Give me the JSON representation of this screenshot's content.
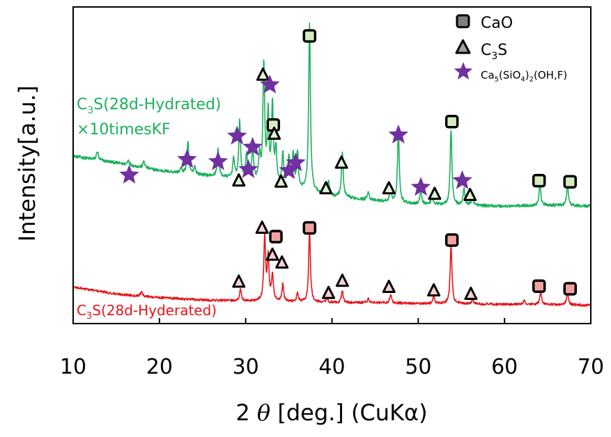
{
  "chart_data": {
    "type": "line",
    "xlabel": "2 θ [deg.] (CuKα)",
    "xlabel_parts": {
      "prefix": "2 ",
      "theta": "θ",
      "suffix": " [deg.] (CuKα)"
    },
    "ylabel": "Intensity[a.u.]",
    "xlim": [
      10,
      70
    ],
    "xticks": [
      10,
      20,
      30,
      40,
      50,
      60,
      70
    ],
    "grid": false,
    "legend_position": "top-right",
    "colors": {
      "hydrated_kf": "#19b15a",
      "hydrated": "#e8141a",
      "star": "#7030a0",
      "cao_green_fill": "#d6ecc0",
      "cao_red_fill": "#f2a0a0",
      "c3s_green_fill": "#dff2d0",
      "c3s_red_fill": "#f8d0d0"
    },
    "legend": [
      {
        "marker": "square",
        "name": "CaO"
      },
      {
        "marker": "triangle",
        "name": "C3S",
        "parts": [
          "C",
          "3",
          "S"
        ]
      },
      {
        "marker": "star",
        "name": "Ca5(SiO4)2(OH,F)",
        "parts": [
          "Ca",
          "5",
          "(SiO",
          "4",
          ")",
          "2",
          "(OH,F)"
        ]
      }
    ],
    "series": [
      {
        "name": "C3S(28d-Hydrated) ×10timesKF",
        "label_line1_parts": [
          "C",
          "3",
          "S(28d-Hydrated)"
        ],
        "label_line2": "×10timesKF",
        "baseline": [
          [
            10,
            0.46
          ],
          [
            15,
            0.4
          ],
          [
            20,
            0.33
          ],
          [
            25,
            0.29
          ],
          [
            30,
            0.25
          ],
          [
            35,
            0.18
          ],
          [
            40,
            0.1
          ],
          [
            45,
            0.06
          ],
          [
            50,
            0.03
          ],
          [
            55,
            0.02
          ],
          [
            60,
            0.01
          ],
          [
            65,
            0.02
          ],
          [
            70,
            0.01
          ]
        ],
        "peaks": [
          [
            12.8,
            0.08
          ],
          [
            16.4,
            0.05
          ],
          [
            18.2,
            0.06
          ],
          [
            22.5,
            0.04
          ],
          [
            23.3,
            0.28
          ],
          [
            24.1,
            0.07
          ],
          [
            26.8,
            0.25
          ],
          [
            28.6,
            0.18
          ],
          [
            29.3,
            0.52
          ],
          [
            30.1,
            0.22
          ],
          [
            30.8,
            0.28
          ],
          [
            31.6,
            0.22
          ],
          [
            32.1,
            1.06
          ],
          [
            32.6,
            0.6
          ],
          [
            33.1,
            0.7
          ],
          [
            33.5,
            0.3
          ],
          [
            34.3,
            0.28
          ],
          [
            35.0,
            0.26
          ],
          [
            35.5,
            0.3
          ],
          [
            36.0,
            0.32
          ],
          [
            37.4,
            1.5
          ],
          [
            39.2,
            0.1
          ],
          [
            39.6,
            0.12
          ],
          [
            41.2,
            0.4
          ],
          [
            44.2,
            0.08
          ],
          [
            46.8,
            0.12
          ],
          [
            47.7,
            0.64
          ],
          [
            50.3,
            0.12
          ],
          [
            51.6,
            0.08
          ],
          [
            53.8,
            0.68
          ],
          [
            55.3,
            0.15
          ],
          [
            56.3,
            0.08
          ],
          [
            64.1,
            0.19
          ],
          [
            67.3,
            0.19
          ]
        ]
      },
      {
        "name": "C3S(28d-Hyderated)",
        "label_parts": [
          "C",
          "3",
          "S(28d-Hyderated)"
        ],
        "baseline": [
          [
            10,
            0.22
          ],
          [
            15,
            0.14
          ],
          [
            20,
            0.1
          ],
          [
            25,
            0.07
          ],
          [
            30,
            0.06
          ],
          [
            35,
            0.05
          ],
          [
            40,
            0.04
          ],
          [
            45,
            0.04
          ],
          [
            50,
            0.03
          ],
          [
            55,
            0.03
          ],
          [
            60,
            0.02
          ],
          [
            65,
            0.02
          ],
          [
            70,
            0.01
          ]
        ],
        "peaks": [
          [
            17.9,
            0.05
          ],
          [
            29.4,
            0.13
          ],
          [
            32.2,
            0.75
          ],
          [
            32.6,
            0.5
          ],
          [
            33.1,
            0.3
          ],
          [
            34.3,
            0.2
          ],
          [
            36.0,
            0.1
          ],
          [
            37.4,
            0.82
          ],
          [
            39.4,
            0.05
          ],
          [
            41.2,
            0.14
          ],
          [
            44.2,
            0.05
          ],
          [
            46.8,
            0.1
          ],
          [
            51.8,
            0.08
          ],
          [
            53.8,
            0.68
          ],
          [
            56.3,
            0.05
          ],
          [
            62.3,
            0.05
          ],
          [
            64.2,
            0.15
          ],
          [
            67.3,
            0.15
          ]
        ]
      }
    ],
    "markers": [
      {
        "type": "square",
        "series": 0,
        "x": 37.4,
        "y": 1.54
      },
      {
        "type": "square",
        "series": 0,
        "x": 33.2,
        "y": 0.74
      },
      {
        "type": "square",
        "series": 0,
        "x": 53.9,
        "y": 0.77
      },
      {
        "type": "square",
        "series": 0,
        "x": 64.0,
        "y": 0.24
      },
      {
        "type": "square",
        "series": 0,
        "x": 67.6,
        "y": 0.23
      },
      {
        "type": "triangle",
        "series": 0,
        "x": 32.0,
        "y": 1.19
      },
      {
        "type": "triangle",
        "series": 0,
        "x": 33.3,
        "y": 0.66
      },
      {
        "type": "triangle",
        "series": 0,
        "x": 29.2,
        "y": 0.24
      },
      {
        "type": "triangle",
        "series": 0,
        "x": 34.1,
        "y": 0.23
      },
      {
        "type": "triangle",
        "series": 0,
        "x": 39.3,
        "y": 0.17
      },
      {
        "type": "triangle",
        "series": 0,
        "x": 41.1,
        "y": 0.4
      },
      {
        "type": "triangle",
        "series": 0,
        "x": 46.6,
        "y": 0.17
      },
      {
        "type": "triangle",
        "series": 0,
        "x": 51.9,
        "y": 0.12
      },
      {
        "type": "triangle",
        "series": 0,
        "x": 56.0,
        "y": 0.11
      },
      {
        "type": "star",
        "series": 0,
        "x": 16.5,
        "y": 0.29
      },
      {
        "type": "star",
        "series": 0,
        "x": 23.2,
        "y": 0.43
      },
      {
        "type": "star",
        "series": 0,
        "x": 26.8,
        "y": 0.41
      },
      {
        "type": "star",
        "series": 0,
        "x": 29.0,
        "y": 0.64
      },
      {
        "type": "star",
        "series": 0,
        "x": 30.3,
        "y": 0.34
      },
      {
        "type": "star",
        "series": 0,
        "x": 30.8,
        "y": 0.54
      },
      {
        "type": "star",
        "series": 0,
        "x": 32.8,
        "y": 1.1
      },
      {
        "type": "star",
        "series": 0,
        "x": 35.0,
        "y": 0.33
      },
      {
        "type": "star",
        "series": 0,
        "x": 35.8,
        "y": 0.4
      },
      {
        "type": "star",
        "series": 0,
        "x": 47.7,
        "y": 0.65
      },
      {
        "type": "star",
        "series": 0,
        "x": 50.3,
        "y": 0.18
      },
      {
        "type": "star",
        "series": 0,
        "x": 55.1,
        "y": 0.24
      },
      {
        "type": "square",
        "series": 1,
        "x": 33.5,
        "y": 0.8
      },
      {
        "type": "square",
        "series": 1,
        "x": 37.4,
        "y": 0.9
      },
      {
        "type": "square",
        "series": 1,
        "x": 53.9,
        "y": 0.76
      },
      {
        "type": "square",
        "series": 1,
        "x": 64.0,
        "y": 0.23
      },
      {
        "type": "square",
        "series": 1,
        "x": 67.6,
        "y": 0.2
      },
      {
        "type": "triangle",
        "series": 1,
        "x": 31.9,
        "y": 0.9
      },
      {
        "type": "triangle",
        "series": 1,
        "x": 33.1,
        "y": 0.59
      },
      {
        "type": "triangle",
        "series": 1,
        "x": 34.2,
        "y": 0.5
      },
      {
        "type": "triangle",
        "series": 1,
        "x": 29.2,
        "y": 0.28
      },
      {
        "type": "triangle",
        "series": 1,
        "x": 39.6,
        "y": 0.15
      },
      {
        "type": "triangle",
        "series": 1,
        "x": 41.2,
        "y": 0.29
      },
      {
        "type": "triangle",
        "series": 1,
        "x": 46.6,
        "y": 0.22
      },
      {
        "type": "triangle",
        "series": 1,
        "x": 51.8,
        "y": 0.18
      },
      {
        "type": "triangle",
        "series": 1,
        "x": 56.1,
        "y": 0.14
      }
    ]
  }
}
